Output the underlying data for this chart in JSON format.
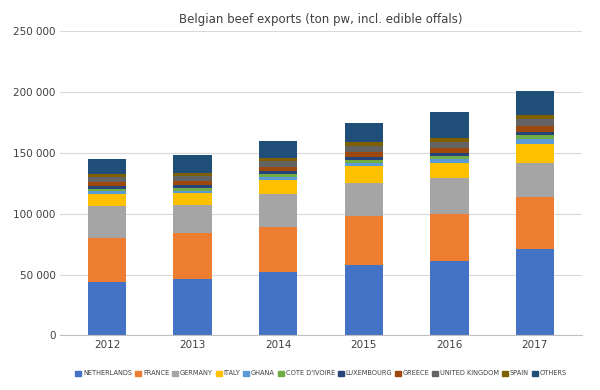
{
  "title": "Belgian beef exports (ton pw, incl. edible offals)",
  "years": [
    2012,
    2013,
    2014,
    2015,
    2016,
    2017
  ],
  "categories": [
    "NETHERLANDS",
    "FRANCE",
    "GERMANY",
    "ITALY",
    "GHANA",
    "COTE D'IVOIRE",
    "LUXEMBOURG",
    "GREECE",
    "UNITED KINGDOM",
    "SPAIN",
    "OTHERS"
  ],
  "colors": [
    "#4472c4",
    "#ed7d31",
    "#a5a5a5",
    "#ffc000",
    "#5b9bd5",
    "#70ad47",
    "#264478",
    "#9e480e",
    "#636363",
    "#7f6000",
    "#1f4e79"
  ],
  "data": {
    "NETHERLANDS": [
      44000,
      46000,
      52000,
      58000,
      61000,
      71000
    ],
    "FRANCE": [
      36000,
      38000,
      37000,
      40000,
      39000,
      43000
    ],
    "GERMANY": [
      26000,
      23000,
      27000,
      27000,
      29000,
      28000
    ],
    "ITALY": [
      10000,
      10000,
      12000,
      14000,
      13000,
      15000
    ],
    "GHANA": [
      2500,
      2000,
      2500,
      3000,
      3000,
      4000
    ],
    "COTE D'IVOIRE": [
      1500,
      2000,
      2000,
      2000,
      2500,
      3500
    ],
    "LUXEMBOURG": [
      2500,
      2500,
      2500,
      2500,
      2500,
      3000
    ],
    "GREECE": [
      3500,
      3500,
      3500,
      4500,
      4000,
      4500
    ],
    "UNITED KINGDOM": [
      4000,
      4000,
      4500,
      5000,
      5000,
      5500
    ],
    "SPAIN": [
      2500,
      2500,
      3000,
      3000,
      3000,
      3500
    ],
    "OTHERS": [
      12500,
      14500,
      13500,
      15500,
      22000,
      19500
    ]
  },
  "ylim": [
    0,
    250000
  ],
  "yticks": [
    0,
    50000,
    100000,
    150000,
    200000,
    250000
  ],
  "ytick_labels": [
    "0",
    "50 000",
    "100 000",
    "150 000",
    "200 000",
    "250 000"
  ],
  "background_color": "#ffffff",
  "grid_color": "#d9d9d9",
  "bar_width": 0.45,
  "figsize": [
    6.0,
    3.9
  ],
  "dpi": 100
}
